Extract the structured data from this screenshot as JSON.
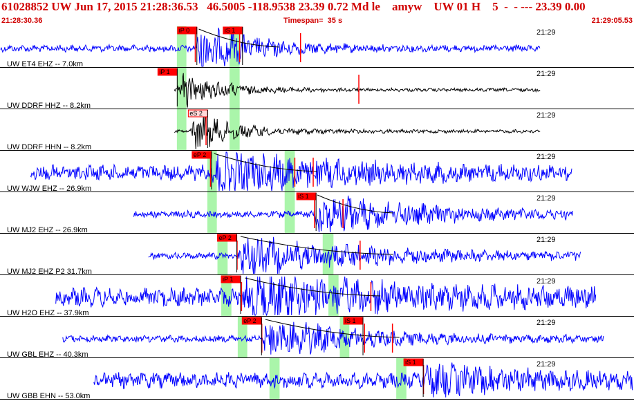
{
  "header": {
    "title": "61028852 UW Jun 17, 2015 21:28:36.53   46.5005 -118.9538 23.39 0.72 Md le    amyw    UW 01 H    5  -  - --- 23.39 0.00",
    "start_time": "21:28:30.36",
    "timespan": "Timespan=  35 s",
    "end_time": "21:29:05.53"
  },
  "colors": {
    "header_text": "#d00000",
    "trace_blue": "#0000ff",
    "trace_black": "#000000",
    "pick_box": "#ff0000",
    "pick_box_hollow": "#ffd8d8",
    "window_green": "#aaf5aa",
    "separator": "#000000"
  },
  "panels": [
    {
      "label": "UW ET4 EHZ -- 7.0km",
      "time": "21:29",
      "color": "blue",
      "amp": 4,
      "start": 0.001,
      "end": 0.852,
      "arrival": 0.308,
      "coda": 0.44,
      "sig_amp": 34,
      "decay": 70,
      "shade": [
        0.279,
        0.294,
        0.362,
        0.378
      ],
      "picks": [
        {
          "label": "iP 0",
          "pos": 0.28,
          "style": "filled"
        },
        {
          "label": "iS 1",
          "pos": 0.352,
          "style": "filled"
        }
      ],
      "marks": [
        0.308,
        0.378,
        0.474
      ],
      "curve": true
    },
    {
      "label": "UW DDRF HHZ -- 8.2km",
      "time": "21:29",
      "color": "black",
      "amp": 2,
      "start": 0.275,
      "end": 0.852,
      "arrival": 0.279,
      "coda": 0.55,
      "sig_amp": 26,
      "decay": 55,
      "shade": [
        0.279,
        0.294,
        0.362,
        0.378
      ],
      "picks": [
        {
          "label": "iP 1",
          "pos": 0.249,
          "style": "filled"
        }
      ],
      "marks": [
        0.566
      ],
      "curve": false
    },
    {
      "label": "UW DDRF HHN -- 8.2km",
      "time": "21:29",
      "color": "black",
      "amp": 2,
      "start": 0.275,
      "end": 0.852,
      "arrival": 0.3,
      "coda": 0.5,
      "sig_amp": 24,
      "decay": 60,
      "shade": [
        0.279,
        0.294,
        0.362,
        0.378
      ],
      "picks": [
        {
          "label": "eS 2",
          "pos": 0.297,
          "style": "hollow"
        }
      ],
      "marks": [
        0.325
      ],
      "curve": false
    },
    {
      "label": "UW WJW EHZ -- 26.9km",
      "time": "21:29",
      "color": "blue",
      "amp": 9,
      "start": 0.048,
      "end": 0.902,
      "arrival": 0.332,
      "coda": 0.5,
      "sig_amp": 24,
      "decay": 160,
      "shade": [
        0.327,
        0.342,
        0.449,
        0.465
      ],
      "picks": [
        {
          "label": "eP 2",
          "pos": 0.303,
          "style": "filled"
        }
      ],
      "marks": [
        0.332,
        0.465,
        0.494
      ],
      "curve": true
    },
    {
      "label": "UW MJ2 EHZ -- 26.9km",
      "time": "21:29",
      "color": "blue",
      "amp": 4,
      "start": 0.211,
      "end": 0.904,
      "arrival": 0.495,
      "coda": 0.62,
      "sig_amp": 26,
      "decay": 140,
      "shade": [
        0.327,
        0.342,
        0.449,
        0.465
      ],
      "picks": [
        {
          "label": "iS 1",
          "pos": 0.468,
          "style": "filled"
        }
      ],
      "marks": [
        0.496,
        0.541
      ],
      "curve": true
    },
    {
      "label": "UW MJ2 EHZ P2 31.7km",
      "time": "21:29",
      "color": "blue",
      "amp": 4,
      "start": 0.234,
      "end": 0.916,
      "arrival": 0.374,
      "coda": 0.62,
      "sig_amp": 24,
      "decay": 170,
      "shade": [
        0.343,
        0.359,
        0.509,
        0.526
      ],
      "picks": [
        {
          "label": "eP 2",
          "pos": 0.343,
          "style": "filled"
        }
      ],
      "marks": [
        0.374,
        0.568
      ],
      "curve": true
    },
    {
      "label": "UW H2O EHZ -- 37.9km",
      "time": "21:29",
      "color": "blue",
      "amp": 11,
      "start": 0.088,
      "end": 0.94,
      "arrival": 0.381,
      "coda": 0.6,
      "sig_amp": 26,
      "decay": 200,
      "shade": [
        0.349,
        0.365,
        0.518,
        0.534
      ],
      "picks": [
        {
          "label": "iP 1",
          "pos": 0.349,
          "style": "filled"
        }
      ],
      "marks": [
        0.381,
        0.585
      ],
      "curve": true
    },
    {
      "label": "UW GBL EHZ -- 40.3km",
      "time": "21:29",
      "color": "blue",
      "amp": 4,
      "start": 0.099,
      "end": 0.952,
      "arrival": 0.413,
      "coda": 0.63,
      "sig_amp": 26,
      "decay": 120,
      "shade": [
        0.375,
        0.39,
        0.536,
        0.551
      ],
      "picks": [
        {
          "label": "eP 2",
          "pos": 0.382,
          "style": "filled"
        },
        {
          "label": "iS 1",
          "pos": 0.542,
          "style": "filled"
        }
      ],
      "marks": [
        0.413,
        0.575,
        0.619
      ],
      "curve": true
    },
    {
      "label": "UW GBB EHN -- 53.0km",
      "time": "21:29",
      "color": "blue",
      "amp": 9,
      "start": 0.148,
      "end": 0.998,
      "arrival": 0.668,
      "coda": 0.8,
      "sig_amp": 14,
      "decay": 150,
      "shade": [
        0.425,
        0.441,
        0.625,
        0.641
      ],
      "picks": [
        {
          "label": "iS 1",
          "pos": 0.637,
          "style": "filled"
        }
      ],
      "marks": [
        0.668
      ],
      "curve": false
    }
  ]
}
